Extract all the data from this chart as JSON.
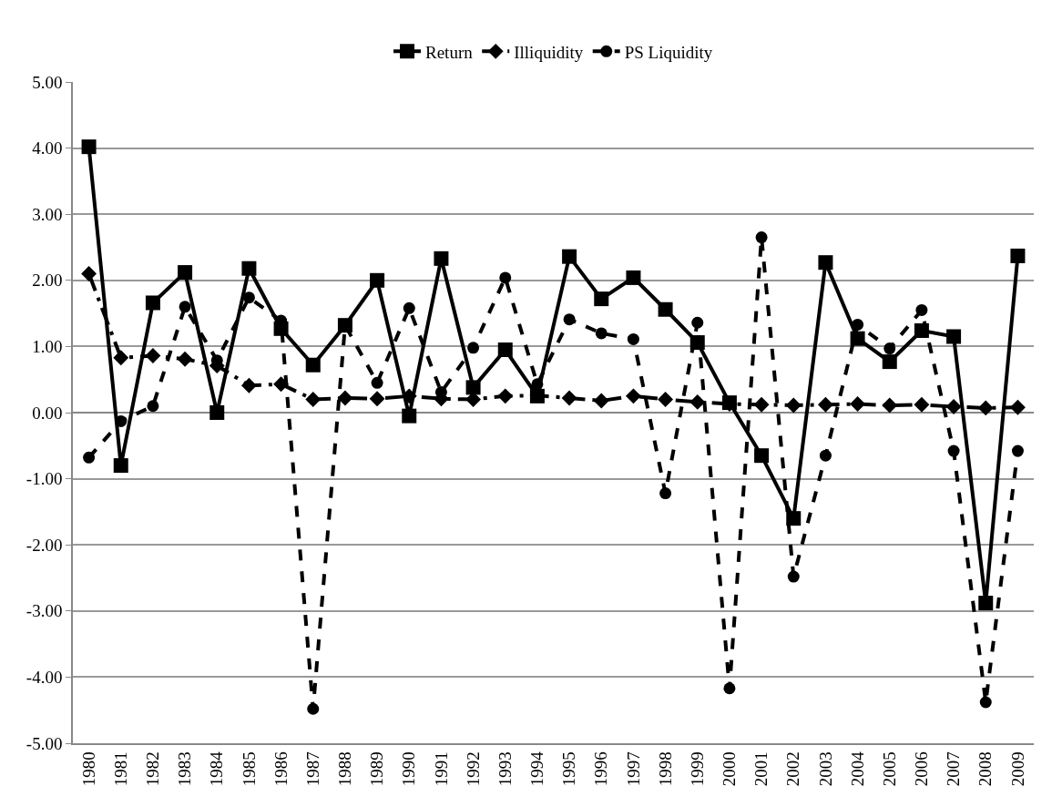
{
  "chart_data": {
    "type": "line",
    "categories": [
      "1980",
      "1981",
      "1982",
      "1983",
      "1984",
      "1985",
      "1986",
      "1987",
      "1988",
      "1989",
      "1990",
      "1991",
      "1992",
      "1993",
      "1994",
      "1995",
      "1996",
      "1997",
      "1998",
      "1999",
      "2000",
      "2001",
      "2002",
      "2003",
      "2004",
      "2005",
      "2006",
      "2007",
      "2008",
      "2009"
    ],
    "series": [
      {
        "name": "Return",
        "color": "#000000",
        "marker": "square",
        "line_style": "solid",
        "values": [
          4.02,
          -0.8,
          1.66,
          2.12,
          0.0,
          2.18,
          1.27,
          0.72,
          1.32,
          2.0,
          -0.05,
          2.33,
          0.38,
          0.95,
          0.25,
          2.36,
          1.72,
          2.04,
          1.56,
          1.06,
          0.15,
          -0.65,
          -1.6,
          2.27,
          1.12,
          0.77,
          1.24,
          1.15,
          -2.88,
          2.37
        ]
      },
      {
        "name": "Illiquidity",
        "color": "#000000",
        "marker": "diamond",
        "line_style": "dashdot",
        "values": [
          2.1,
          0.83,
          0.86,
          0.81,
          0.71,
          0.41,
          0.43,
          0.2,
          0.22,
          0.21,
          0.25,
          0.21,
          0.2,
          0.25,
          0.26,
          0.22,
          0.18,
          0.25,
          0.2,
          0.16,
          0.13,
          0.12,
          0.11,
          0.12,
          0.13,
          0.11,
          0.12,
          0.09,
          0.07,
          0.08
        ]
      },
      {
        "name": "PS Liquidity",
        "color": "#000000",
        "marker": "circle",
        "line_style": "dashed",
        "values": [
          -0.68,
          -0.13,
          0.1,
          1.6,
          0.79,
          1.74,
          1.39,
          -4.48,
          1.32,
          0.45,
          1.58,
          0.31,
          0.98,
          2.04,
          0.43,
          1.41,
          1.2,
          1.11,
          -1.22,
          1.36,
          -4.17,
          2.65,
          -2.48,
          -0.65,
          1.33,
          0.97,
          1.55,
          -0.58,
          -4.38,
          -0.58
        ]
      }
    ],
    "ylim": [
      -5,
      5
    ],
    "yticks": [
      {
        "value": -5,
        "label": "-5.00"
      },
      {
        "value": -4,
        "label": "-4.00"
      },
      {
        "value": -3,
        "label": "-3.00"
      },
      {
        "value": -2,
        "label": "-2.00"
      },
      {
        "value": -1,
        "label": "-1.00"
      },
      {
        "value": 0,
        "label": "0.00"
      },
      {
        "value": 1,
        "label": "1.00"
      },
      {
        "value": 2,
        "label": "2.00"
      },
      {
        "value": 3,
        "label": "3.00"
      },
      {
        "value": 4,
        "label": "4.00"
      },
      {
        "value": 5,
        "label": "5.00"
      }
    ],
    "grid": "y",
    "legend": "top"
  }
}
